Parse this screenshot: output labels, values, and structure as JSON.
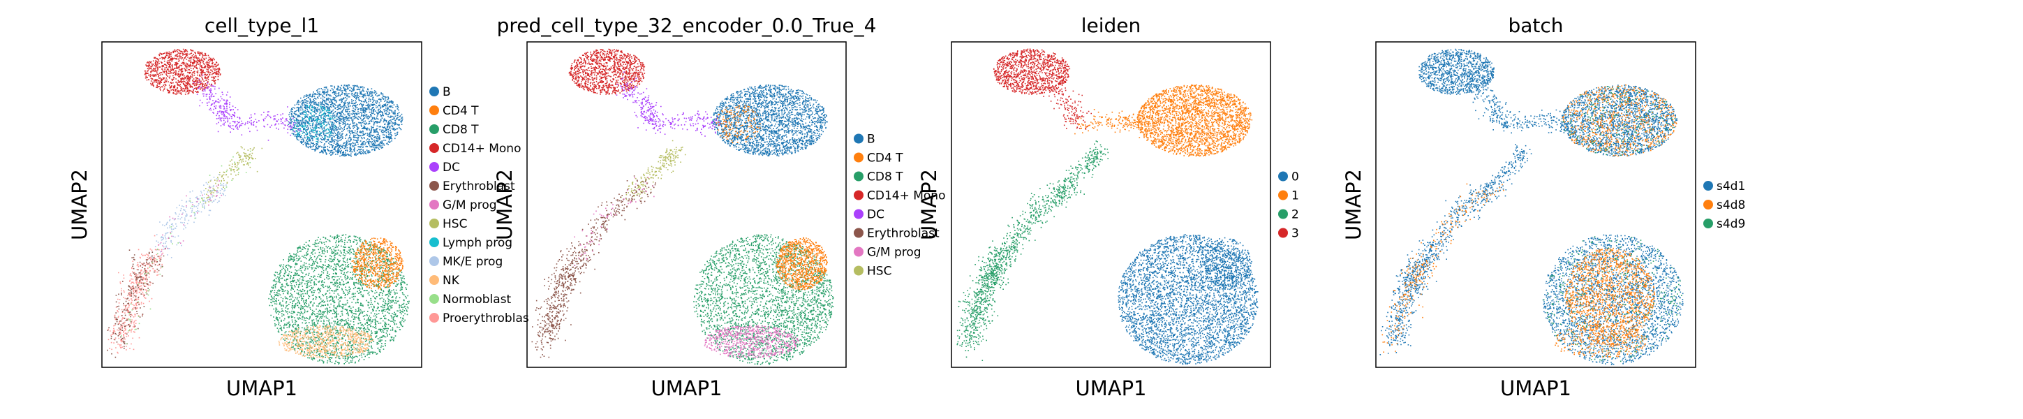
{
  "colors": {
    "B": "#1f77b4",
    "CD4 T": "#ff7f0e",
    "CD8 T": "#279e68",
    "CD14+ Mono": "#d62728",
    "DC": "#aa40fc",
    "Erythroblast": "#8c564b",
    "G/M prog": "#e377c2",
    "HSC": "#b5bd61",
    "Lymph prog": "#17becf",
    "MK/E prog": "#aec7e8",
    "NK": "#ffbb78",
    "Normoblast": "#98df8a",
    "Proerythroblast": "#ff9896",
    "leiden0": "#1f77b4",
    "leiden1": "#ff7f0e",
    "leiden2": "#279e68",
    "leiden3": "#d62728",
    "s4d1": "#1f77b4",
    "s4d8": "#ff7f0e",
    "s4d9": "#279e68"
  },
  "chart_data": [
    {
      "type": "scatter",
      "title": "cell_type_l1",
      "xlabel": "UMAP1",
      "ylabel": "UMAP2",
      "grid": false,
      "legend_position": "right",
      "legend": [
        "B",
        "CD4 T",
        "CD8 T",
        "CD14+ Mono",
        "DC",
        "Erythroblast",
        "G/M prog",
        "HSC",
        "Lymph prog",
        "MK/E prog",
        "NK",
        "Normoblast",
        "Proerythroblast"
      ],
      "legend_display": [
        "B",
        "CD4 T",
        "CD8 T",
        "CD14+ Mono",
        "DC",
        "Erythroblast",
        "G/M prog",
        "HSC",
        "Lymph prog",
        "MK/E prog",
        "NK",
        "Normoblast",
        "Proerythroblas"
      ]
    },
    {
      "type": "scatter",
      "title": "pred_cell_type_32_encoder_0.0_True_4",
      "xlabel": "UMAP1",
      "ylabel": "UMAP2",
      "grid": false,
      "legend_position": "right",
      "legend": [
        "B",
        "CD4 T",
        "CD8 T",
        "CD14+ Mono",
        "DC",
        "Erythroblast",
        "G/M prog",
        "HSC"
      ],
      "legend_display": [
        "B",
        "CD4 T",
        "CD8 T",
        "CD14+ Mono",
        "DC",
        "Erythroblast",
        "G/M prog",
        "HSC"
      ]
    },
    {
      "type": "scatter",
      "title": "leiden",
      "xlabel": "UMAP1",
      "ylabel": "UMAP2",
      "grid": false,
      "legend_position": "right",
      "legend": [
        "0",
        "1",
        "2",
        "3"
      ],
      "legend_display": [
        "0",
        "1",
        "2",
        "3"
      ]
    },
    {
      "type": "scatter",
      "title": "batch",
      "xlabel": "UMAP1",
      "ylabel": "UMAP2",
      "grid": false,
      "legend_position": "right",
      "legend": [
        "s4d1",
        "s4d8",
        "s4d9"
      ],
      "legend_display": [
        "s4d1",
        "s4d8",
        "s4d9"
      ]
    }
  ]
}
